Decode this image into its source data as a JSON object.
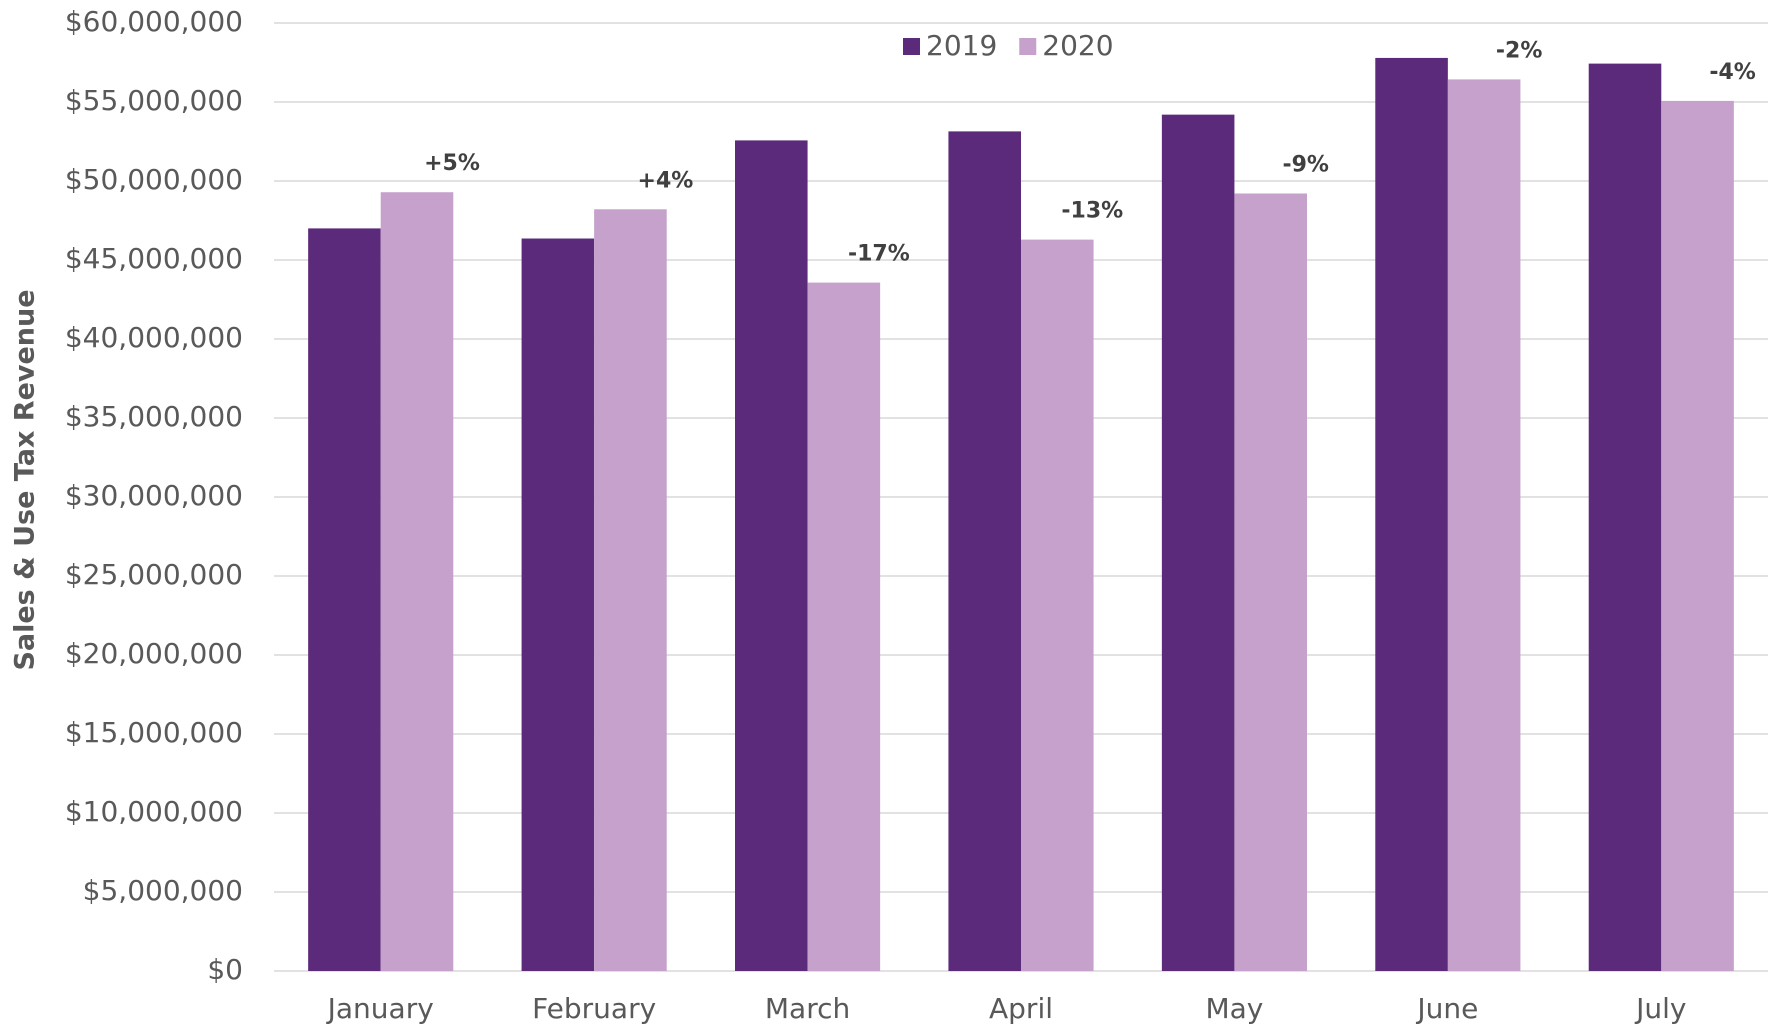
{
  "chart_data": {
    "type": "bar",
    "y_label": "Sales & Use Tax Revenue",
    "categories": [
      "January",
      "February",
      "March",
      "April",
      "May",
      "June",
      "July"
    ],
    "series": [
      {
        "name": "2019",
        "color": "#5c2a7a",
        "values": [
          47000000,
          46360000,
          52570000,
          53140000,
          54200000,
          57790000,
          57430000
        ]
      },
      {
        "name": "2020",
        "color": "#c5a1cc",
        "values": [
          49290000,
          48210000,
          43570000,
          46290000,
          49210000,
          56430000,
          55070000
        ]
      }
    ],
    "annotations": [
      "+5%",
      "+4%",
      "-17%",
      "-13%",
      "-9%",
      "-2%",
      "-4%"
    ],
    "ylim": [
      0,
      60000000
    ],
    "yticks": [
      {
        "value": 0,
        "label": "$0"
      },
      {
        "value": 5000000,
        "label": "$5,000,000"
      },
      {
        "value": 10000000,
        "label": "$10,000,000"
      },
      {
        "value": 15000000,
        "label": "$15,000,000"
      },
      {
        "value": 20000000,
        "label": "$20,000,000"
      },
      {
        "value": 25000000,
        "label": "$25,000,000"
      },
      {
        "value": 30000000,
        "label": "$30,000,000"
      },
      {
        "value": 35000000,
        "label": "$35,000,000"
      },
      {
        "value": 40000000,
        "label": "$40,000,000"
      },
      {
        "value": 45000000,
        "label": "$45,000,000"
      },
      {
        "value": 50000000,
        "label": "$50,000,000"
      },
      {
        "value": 55000000,
        "label": "$55,000,000"
      },
      {
        "value": 60000000,
        "label": "$60,000,000"
      }
    ],
    "grid": true,
    "legend": "top"
  }
}
